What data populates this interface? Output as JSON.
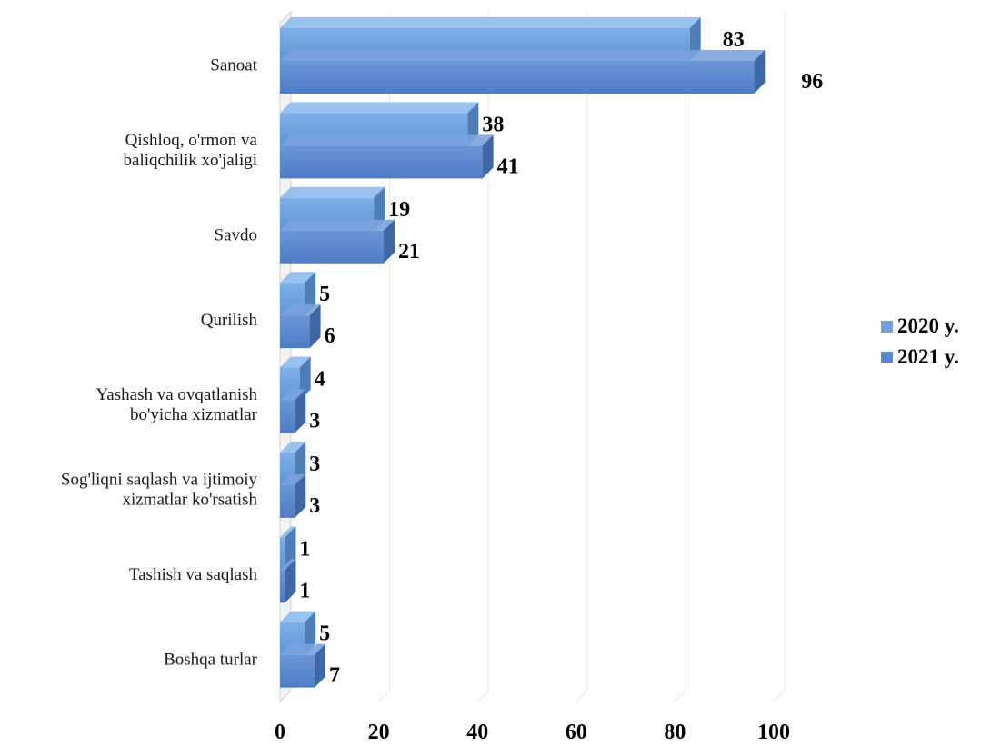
{
  "chart_data": {
    "type": "bar",
    "orientation": "horizontal",
    "categories": [
      "Sanoat",
      "Qishloq, o'rmon va baliqchilik xo'jaligi",
      "Savdo",
      "Qurilish",
      "Yashash va ovqatlanish bo'yicha xizmatlar",
      "Sog'liqni saqlash va ijtimoiy xizmatlar ko'rsatish",
      "Tashish va saqlash",
      "Boshqa turlar"
    ],
    "category_lines": [
      [
        "Sanoat"
      ],
      [
        "Qishloq, o'rmon va",
        "baliqchilik xo'jaligi"
      ],
      [
        "Savdo"
      ],
      [
        "Qurilish"
      ],
      [
        "Yashash va ovqatlanish",
        "bo'yicha xizmatlar"
      ],
      [
        "Sog'liqni saqlash va ijtimoiy",
        "xizmatlar ko'rsatish"
      ],
      [
        "Tashish va saqlash"
      ],
      [
        "Boshqa turlar"
      ]
    ],
    "series": [
      {
        "name": "2020 y.",
        "values": [
          83,
          38,
          19,
          5,
          4,
          3,
          1,
          5
        ],
        "color": "#6fa3de"
      },
      {
        "name": "2021 y.",
        "values": [
          96,
          41,
          21,
          6,
          3,
          3,
          1,
          7
        ],
        "color": "#5b87cc"
      }
    ],
    "xlim": [
      0,
      100
    ],
    "xticks": [
      0,
      20,
      40,
      60,
      80,
      100
    ],
    "grid": true,
    "legend_position": "right",
    "style": "3d"
  }
}
